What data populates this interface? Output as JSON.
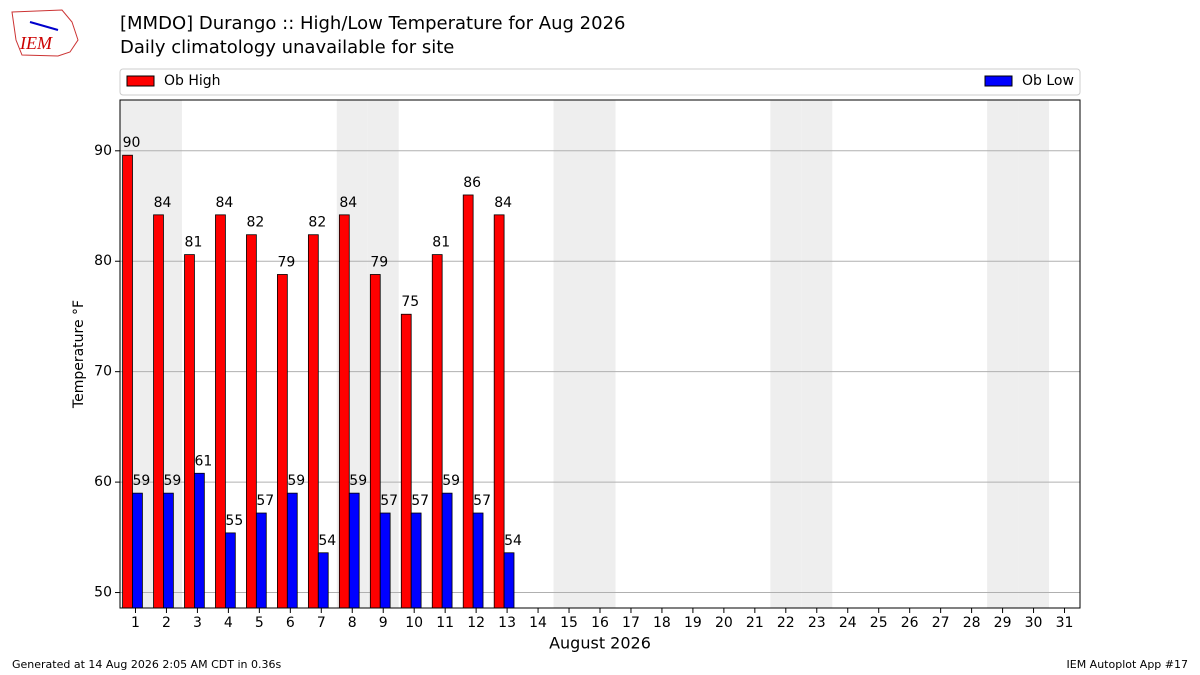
{
  "logo_text": "IEM",
  "footer_left": "Generated at 14 Aug 2026 2:05 AM CDT in 0.36s",
  "footer_right": "IEM Autoplot App #17",
  "chart_data": {
    "type": "bar",
    "title": "[MMDO] Durango :: High/Low Temperature for Aug 2026",
    "subtitle": "Daily climatology unavailable for site",
    "ylabel": "Temperature °F",
    "xlabel": "August 2026",
    "categories": [
      "1",
      "2",
      "3",
      "4",
      "5",
      "6",
      "7",
      "8",
      "9",
      "10",
      "11",
      "12",
      "13",
      "14",
      "15",
      "16",
      "17",
      "18",
      "19",
      "20",
      "21",
      "22",
      "23",
      "24",
      "25",
      "26",
      "27",
      "28",
      "29",
      "30",
      "31"
    ],
    "series": [
      {
        "name": "Ob High",
        "color": "#ff0000",
        "values": [
          89.6,
          84.2,
          80.6,
          84.2,
          82.4,
          78.8,
          82.4,
          84.2,
          78.8,
          75.2,
          80.6,
          86.0,
          84.2,
          null,
          null,
          null,
          null,
          null,
          null,
          null,
          null,
          null,
          null,
          null,
          null,
          null,
          null,
          null,
          null,
          null,
          null
        ],
        "value_labels": [
          "90",
          "84",
          "81",
          "84",
          "82",
          "79",
          "82",
          "84",
          "79",
          "75",
          "81",
          "86",
          "84",
          null,
          null,
          null,
          null,
          null,
          null,
          null,
          null,
          null,
          null,
          null,
          null,
          null,
          null,
          null,
          null,
          null,
          null
        ]
      },
      {
        "name": "Ob Low",
        "color": "#0000ff",
        "values": [
          59.0,
          59.0,
          60.8,
          55.4,
          57.2,
          59.0,
          53.6,
          59.0,
          57.2,
          57.2,
          59.0,
          57.2,
          53.6,
          null,
          null,
          null,
          null,
          null,
          null,
          null,
          null,
          null,
          null,
          null,
          null,
          null,
          null,
          null,
          null,
          null,
          null
        ],
        "value_labels": [
          "59",
          "59",
          "61",
          "55",
          "57",
          "59",
          "54",
          "59",
          "57",
          "57",
          "59",
          "57",
          "54",
          null,
          null,
          null,
          null,
          null,
          null,
          null,
          null,
          null,
          null,
          null,
          null,
          null,
          null,
          null,
          null,
          null,
          null
        ]
      }
    ],
    "ylim": [
      48.6,
      94.6
    ],
    "yticks": [
      50,
      60,
      70,
      80,
      90
    ],
    "grid": true
  }
}
